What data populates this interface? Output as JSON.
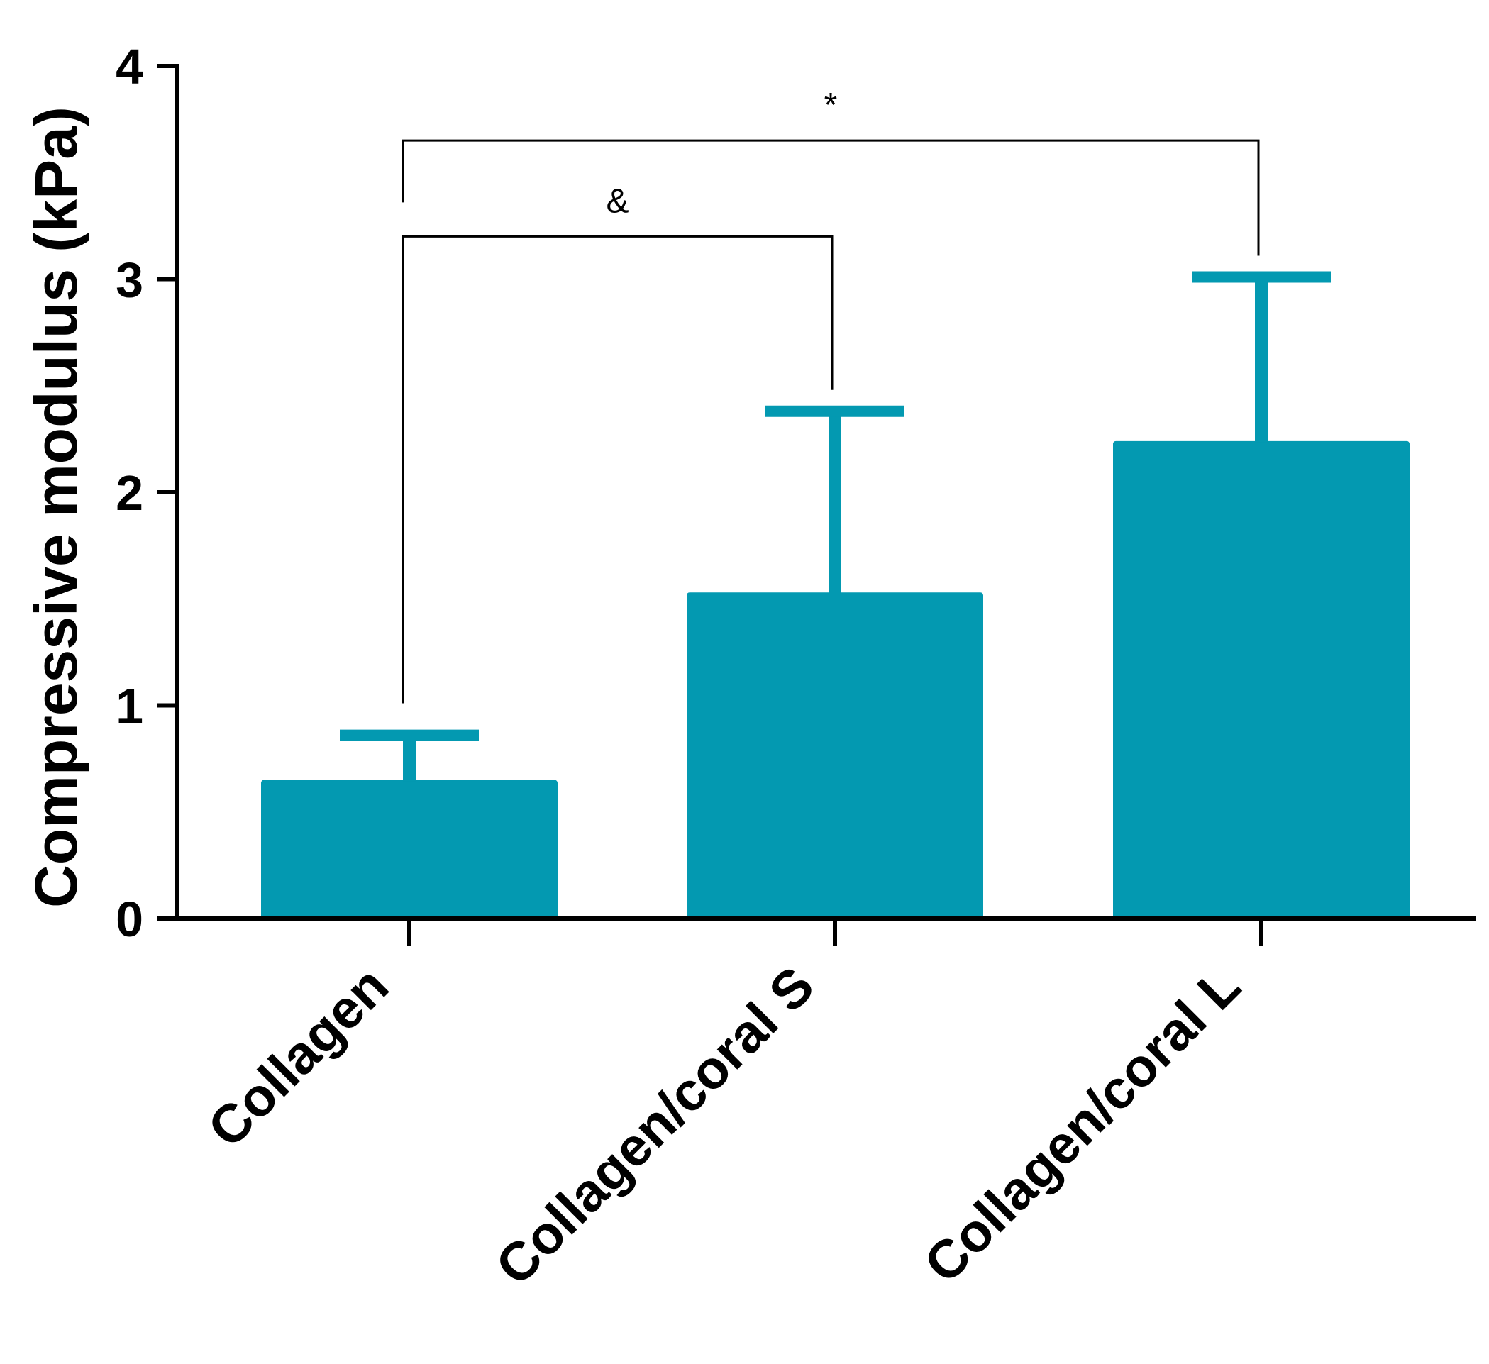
{
  "chart_data": {
    "type": "bar",
    "title": "",
    "xlabel": "",
    "ylabel": "Compressive modulus (kPa)",
    "ylim": [
      0,
      4
    ],
    "yticks": [
      0,
      1,
      2,
      3,
      4
    ],
    "categories": [
      "Collagen",
      "Collagen/coral S",
      "Collagen/coral L"
    ],
    "values": [
      0.65,
      1.53,
      2.24
    ],
    "errors": [
      0.21,
      0.85,
      0.77
    ],
    "bar_color": "#0399b1",
    "grid": false,
    "significance": [
      {
        "from": 0,
        "to": 1,
        "label": "&",
        "level": 3.2
      },
      {
        "from": 0,
        "to": 2,
        "label": "*",
        "level": 3.65
      }
    ]
  }
}
